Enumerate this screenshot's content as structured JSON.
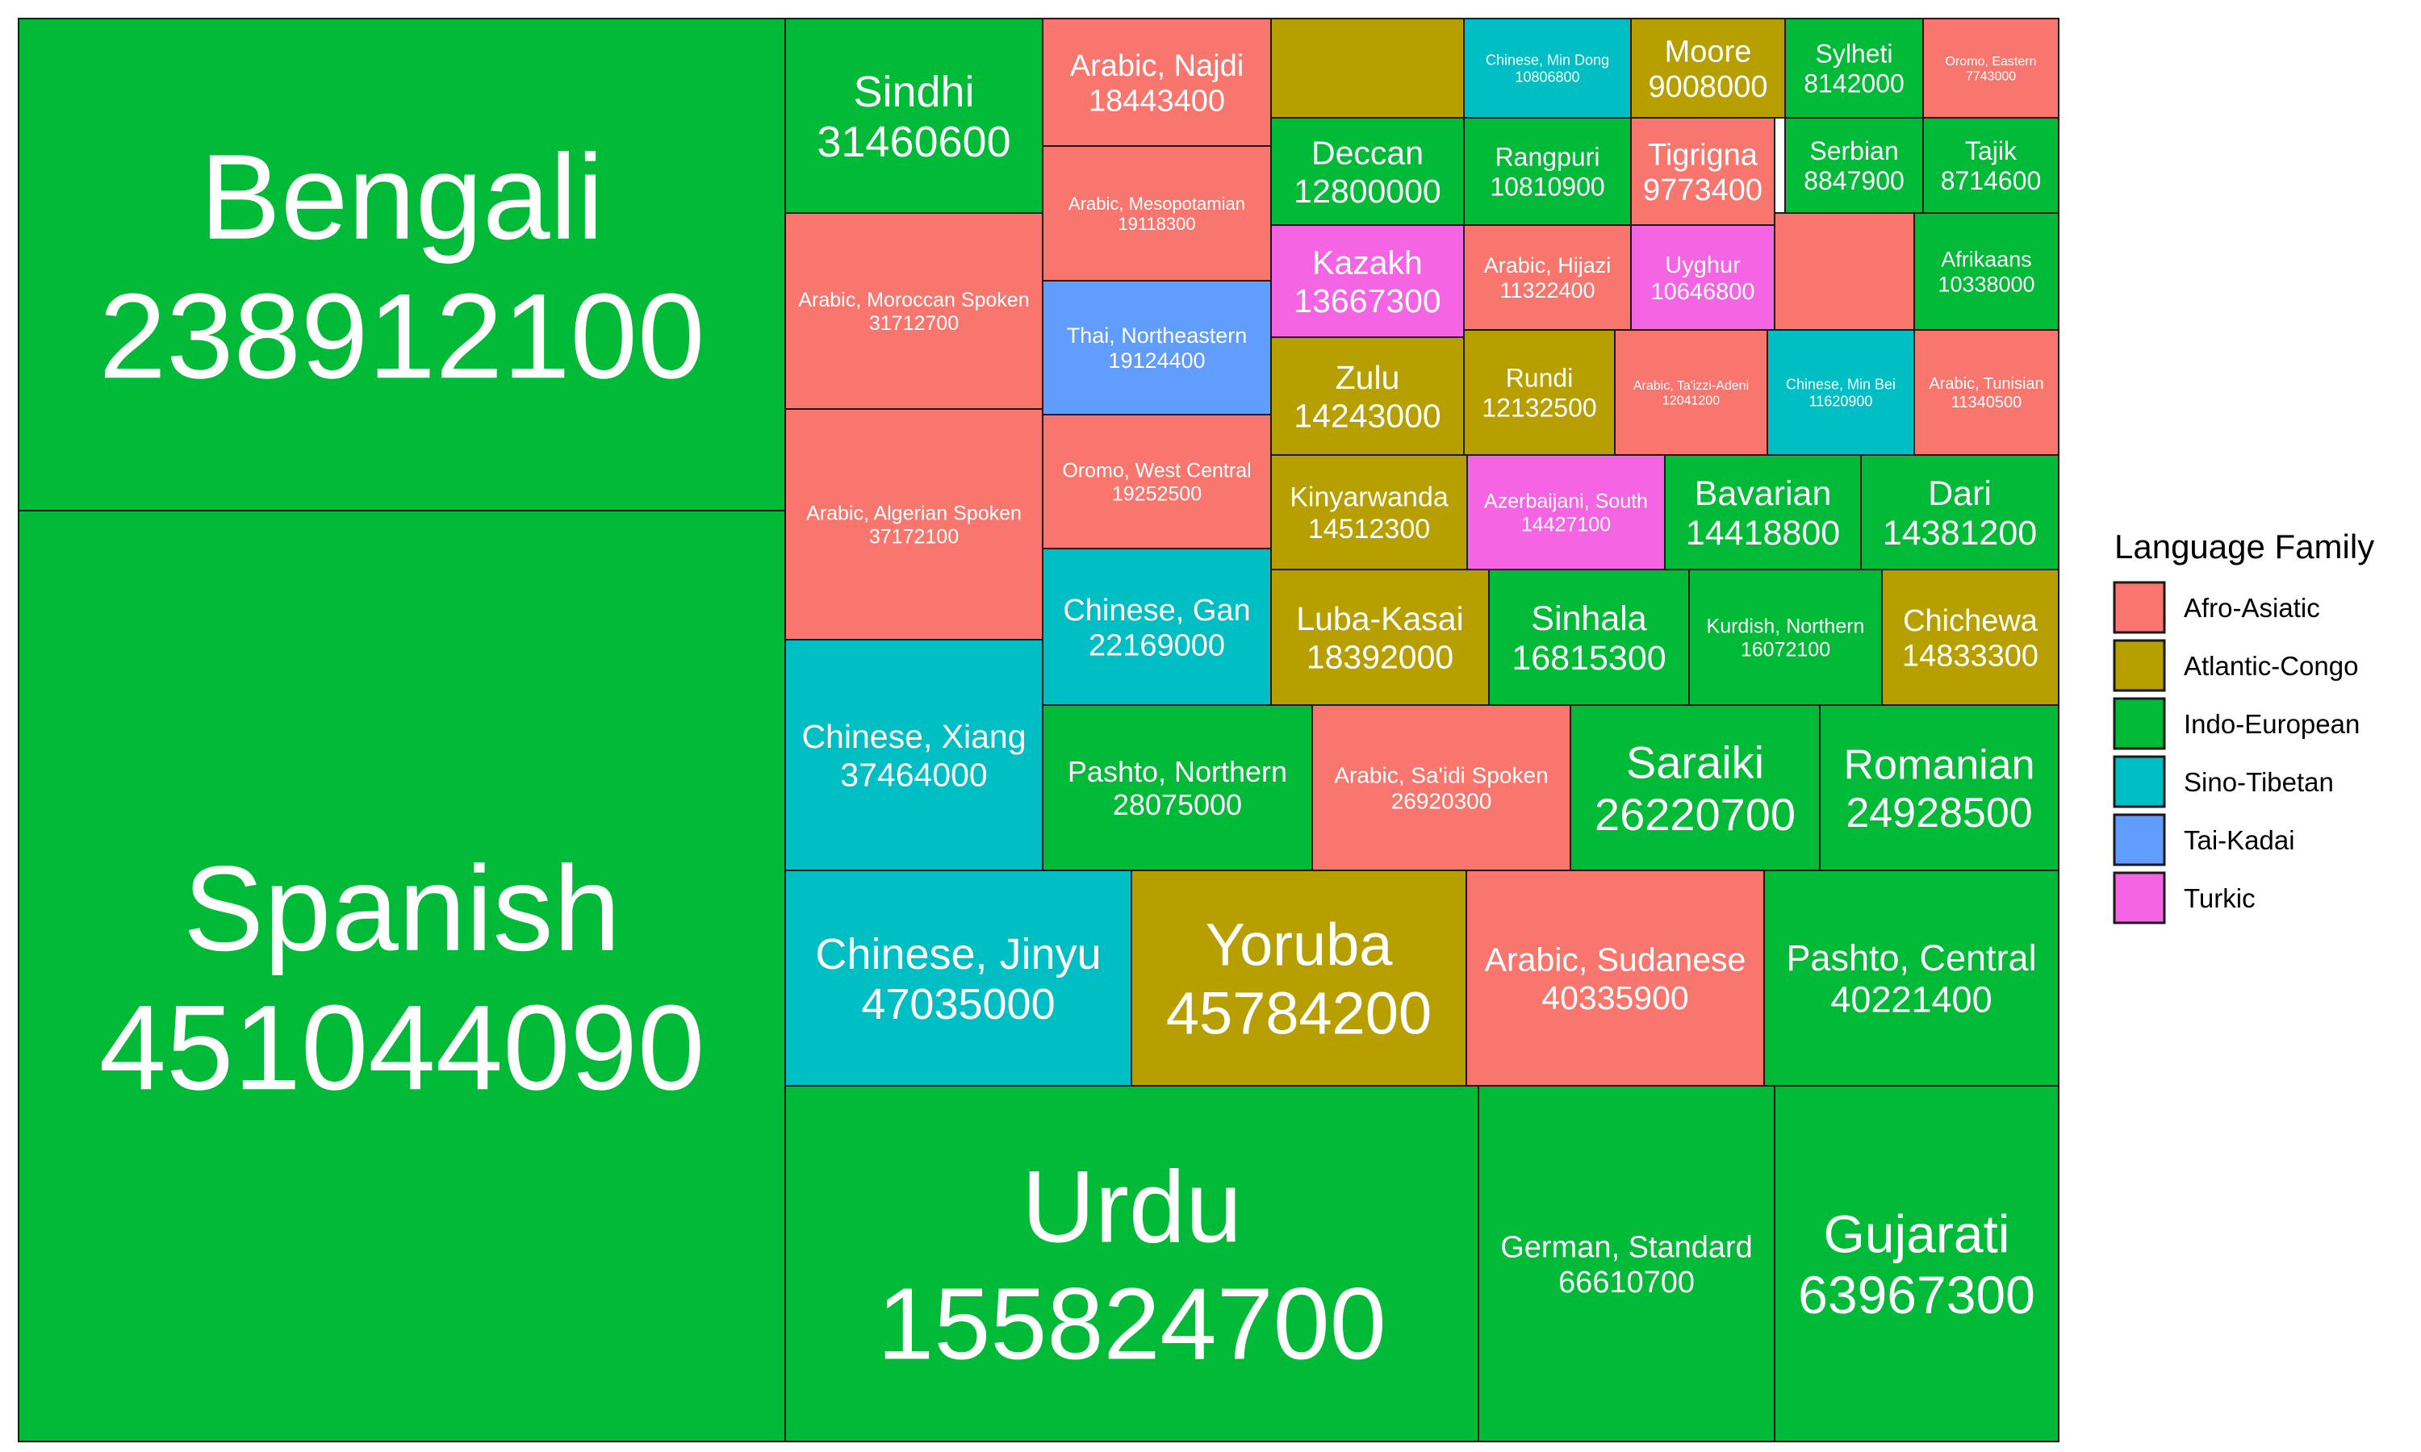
{
  "chart_data": {
    "type": "treemap",
    "title": "",
    "legend": {
      "title": "Language Family",
      "placement": "right",
      "entries": [
        {
          "name": "Afro-Asiatic",
          "color": "#F8766D"
        },
        {
          "name": "Atlantic-Congo",
          "color": "#B79F00"
        },
        {
          "name": "Indo-European",
          "color": "#00BA38"
        },
        {
          "name": "Sino-Tibetan",
          "color": "#00BFC4"
        },
        {
          "name": "Tai-Kadai",
          "color": "#619CFF"
        },
        {
          "name": "Turkic",
          "color": "#F564E3"
        }
      ]
    },
    "items": [
      {
        "name": "Spanish",
        "value": 451044090,
        "family": "Indo-European"
      },
      {
        "name": "Bengali",
        "value": 238912100,
        "family": "Indo-European"
      },
      {
        "name": "Urdu",
        "value": 155824700,
        "family": "Indo-European"
      },
      {
        "name": "German, Standard",
        "value": 66610700,
        "family": "Indo-European"
      },
      {
        "name": "Gujarati",
        "value": 63967300,
        "family": "Indo-European"
      },
      {
        "name": "Chinese, Jinyu",
        "value": 47035000,
        "family": "Sino-Tibetan"
      },
      {
        "name": "Yoruba",
        "value": 45784200,
        "family": "Atlantic-Congo"
      },
      {
        "name": "Arabic, Sudanese",
        "value": 40335900,
        "family": "Afro-Asiatic"
      },
      {
        "name": "Pashto, Central",
        "value": 40221400,
        "family": "Indo-European"
      },
      {
        "name": "Chinese, Xiang",
        "value": 37464000,
        "family": "Sino-Tibetan"
      },
      {
        "name": "Arabic, Algerian Spoken",
        "value": 37172100,
        "family": "Afro-Asiatic"
      },
      {
        "name": "Arabic, Moroccan Spoken",
        "value": 31712700,
        "family": "Afro-Asiatic"
      },
      {
        "name": "Sindhi",
        "value": 31460600,
        "family": "Indo-European"
      },
      {
        "name": "Pashto, Northern",
        "value": 28075000,
        "family": "Indo-European"
      },
      {
        "name": "Arabic, Sa'idi Spoken",
        "value": 26920300,
        "family": "Afro-Asiatic"
      },
      {
        "name": "Saraiki",
        "value": 26220700,
        "family": "Indo-European"
      },
      {
        "name": "Romanian",
        "value": 24928500,
        "family": "Indo-European"
      },
      {
        "name": "Chinese, Gan",
        "value": 22169000,
        "family": "Sino-Tibetan"
      },
      {
        "name": "Oromo, West Central",
        "value": 19252500,
        "family": "Afro-Asiatic"
      },
      {
        "name": "Thai, Northeastern",
        "value": 19124400,
        "family": "Tai-Kadai"
      },
      {
        "name": "Arabic, Mesopotamian",
        "value": 19118300,
        "family": "Afro-Asiatic"
      },
      {
        "name": "Arabic, Najdi",
        "value": 18443400,
        "family": "Afro-Asiatic"
      },
      {
        "name": "Luba-Kasai",
        "value": 18392000,
        "family": "Atlantic-Congo"
      },
      {
        "name": "Sinhala",
        "value": 16815300,
        "family": "Indo-European"
      },
      {
        "name": "Kurdish, Northern",
        "value": 16072100,
        "family": "Indo-European"
      },
      {
        "name": "Chichewa",
        "value": 14833300,
        "family": "Atlantic-Congo"
      },
      {
        "name": "Kinyarwanda",
        "value": 14512300,
        "family": "Atlantic-Congo"
      },
      {
        "name": "Azerbaijani, South",
        "value": 14427100,
        "family": "Turkic"
      },
      {
        "name": "Bavarian",
        "value": 14418800,
        "family": "Indo-European"
      },
      {
        "name": "Dari",
        "value": 14381200,
        "family": "Indo-European"
      },
      {
        "name": "Zulu",
        "value": 14243000,
        "family": "Atlantic-Congo"
      },
      {
        "name": "Kazakh",
        "value": 13667300,
        "family": "Turkic"
      },
      {
        "name": "Deccan",
        "value": 12800000,
        "family": "Indo-European"
      },
      {
        "name": "Rundi",
        "value": 12132500,
        "family": "Atlantic-Congo"
      },
      {
        "name": "Arabic, Ta'izzi-Adeni",
        "value": 12041200,
        "family": "Afro-Asiatic"
      },
      {
        "name": "Chinese, Min Bei",
        "value": 11620900,
        "family": "Sino-Tibetan"
      },
      {
        "name": "Arabic, Tunisian",
        "value": 11340500,
        "family": "Afro-Asiatic"
      },
      {
        "name": "Arabic, Hijazi",
        "value": 11322400,
        "family": "Afro-Asiatic"
      },
      {
        "name": "Rangpuri",
        "value": 10810900,
        "family": "Indo-European"
      },
      {
        "name": "Chinese, Min Dong",
        "value": 10806800,
        "family": "Sino-Tibetan"
      },
      {
        "name": "Uyghur",
        "value": 10646800,
        "family": "Turkic"
      },
      {
        "name": "Afrikaans",
        "value": 10338000,
        "family": "Indo-European"
      },
      {
        "name": "Tigrigna",
        "value": 9773400,
        "family": "Afro-Asiatic"
      },
      {
        "name": "Moore",
        "value": 9008000,
        "family": "Atlantic-Congo"
      },
      {
        "name": "Serbian",
        "value": 8847900,
        "family": "Indo-European"
      },
      {
        "name": "Tajik",
        "value": 8714600,
        "family": "Indo-European"
      },
      {
        "name": "Sylheti",
        "value": 8142000,
        "family": "Indo-European"
      },
      {
        "name": "Oromo, Eastern",
        "value": 7743000,
        "family": "Afro-Asiatic"
      },
      {
        "name": "",
        "value": null,
        "family": "Atlantic-Congo"
      },
      {
        "name": "",
        "value": null,
        "family": "Afro-Asiatic"
      }
    ]
  }
}
